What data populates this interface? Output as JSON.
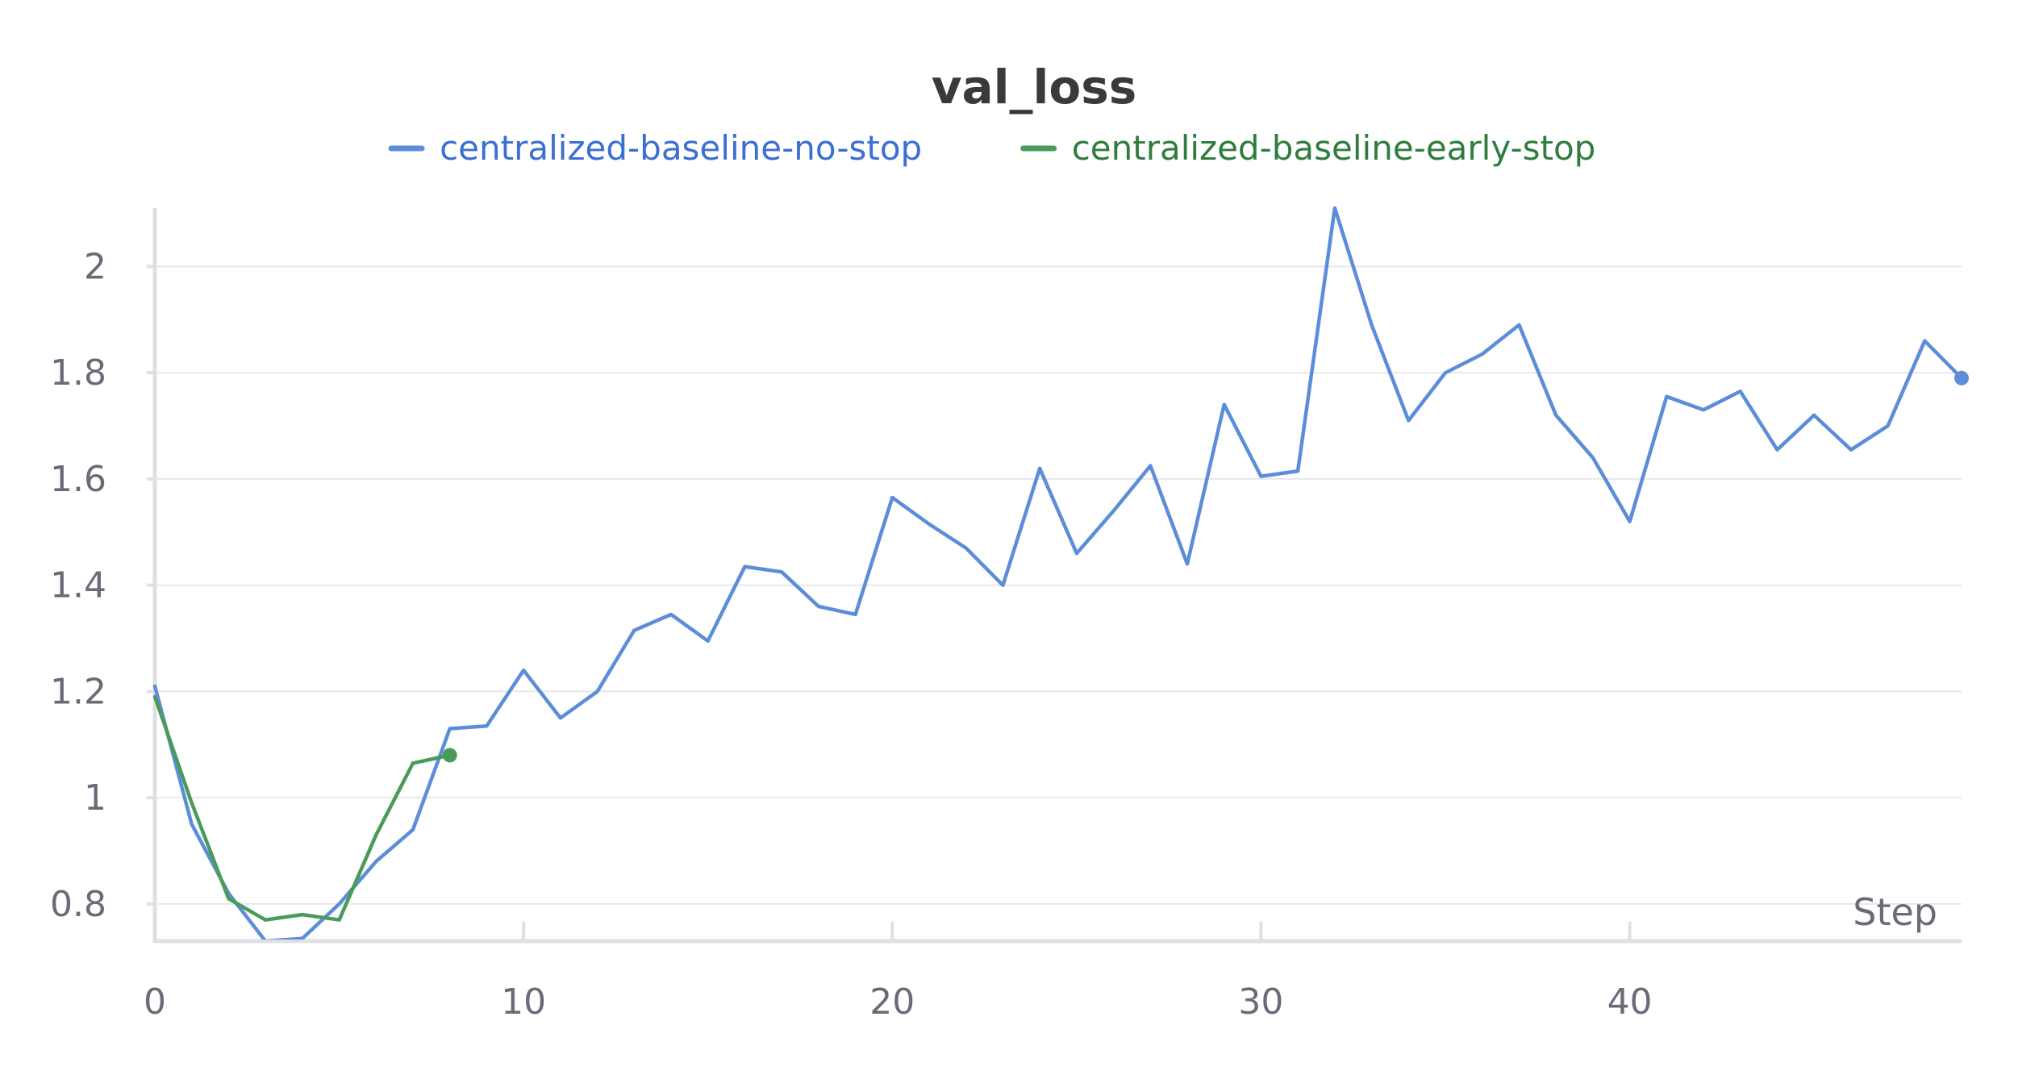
{
  "chart_data": {
    "type": "line",
    "title": "val_loss",
    "xlabel": "Step",
    "ylabel": "",
    "xlim": [
      0,
      49
    ],
    "ylim": [
      0.73,
      2.11
    ],
    "x_ticks": [
      0,
      10,
      20,
      30,
      40
    ],
    "y_ticks": [
      0.8,
      1,
      1.2,
      1.4,
      1.6,
      1.8,
      2
    ],
    "x_tick_labels": [
      "0",
      "10",
      "20",
      "30",
      "40"
    ],
    "y_tick_labels": [
      "0.8",
      "1",
      "1.2",
      "1.4",
      "1.6",
      "1.8",
      "2"
    ],
    "grid": true,
    "legend_position": "top-center",
    "series": [
      {
        "name": "centralized-baseline-no-stop",
        "color": "#5b8dd9",
        "legend_color": "#3b6fd0",
        "x": [
          0,
          1,
          2,
          3,
          4,
          5,
          6,
          7,
          8,
          9,
          10,
          11,
          12,
          13,
          14,
          15,
          16,
          17,
          18,
          19,
          20,
          21,
          22,
          23,
          24,
          25,
          26,
          27,
          28,
          29,
          30,
          31,
          32,
          33,
          34,
          35,
          36,
          37,
          38,
          39,
          40,
          41,
          42,
          43,
          44,
          45,
          46,
          47,
          48,
          49
        ],
        "values": [
          1.21,
          0.95,
          0.82,
          0.73,
          0.735,
          0.8,
          0.88,
          0.94,
          1.13,
          1.135,
          1.24,
          1.15,
          1.2,
          1.315,
          1.345,
          1.295,
          1.435,
          1.425,
          1.36,
          1.345,
          1.565,
          1.515,
          1.47,
          1.4,
          1.62,
          1.46,
          1.54,
          1.625,
          1.44,
          1.74,
          1.605,
          1.615,
          2.11,
          1.89,
          1.71,
          1.8,
          1.835,
          1.89,
          1.72,
          1.64,
          1.52,
          1.755,
          1.73,
          1.765,
          1.655,
          1.72,
          1.655,
          1.7,
          1.86,
          1.79
        ]
      },
      {
        "name": "centralized-baseline-early-stop",
        "color": "#4a9b5a",
        "legend_color": "#2e7d3e",
        "x": [
          0,
          1,
          2,
          3,
          4,
          5,
          6,
          7,
          8
        ],
        "values": [
          1.19,
          0.99,
          0.81,
          0.77,
          0.78,
          0.77,
          0.93,
          1.065,
          1.08
        ]
      }
    ]
  }
}
